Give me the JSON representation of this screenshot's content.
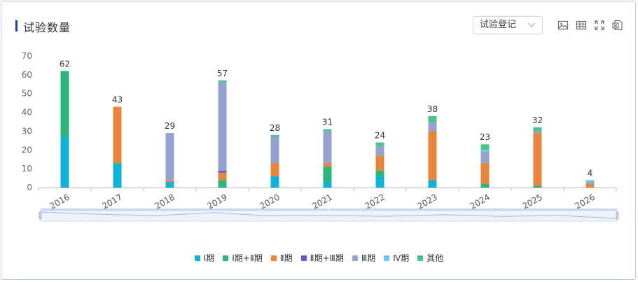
{
  "header": {
    "title": "试验数量",
    "select_value": "试验登记"
  },
  "toolbar": {
    "icons": [
      "image-icon",
      "table-icon",
      "fullscreen-icon",
      "excel-icon"
    ]
  },
  "chart_data": {
    "type": "bar",
    "stacked": true,
    "title": "",
    "xlabel": "",
    "ylabel": "",
    "ylim": [
      0,
      70
    ],
    "yticks": [
      0,
      10,
      20,
      30,
      40,
      50,
      60,
      70
    ],
    "grid": false,
    "legend_position": "bottom",
    "categories": [
      "2016",
      "2017",
      "2018",
      "2019",
      "2020",
      "2021",
      "2022",
      "2023",
      "2024",
      "2025",
      "2026"
    ],
    "totals": [
      62,
      43,
      29,
      57,
      28,
      31,
      24,
      38,
      23,
      32,
      4
    ],
    "series": [
      {
        "name": "Ⅰ期",
        "color": "#0fb3d6",
        "values": [
          27,
          13,
          3,
          0,
          6,
          3,
          6,
          4,
          0,
          0,
          0
        ]
      },
      {
        "name": "Ⅰ期+Ⅱ期",
        "color": "#2db47a",
        "values": [
          35,
          0,
          0,
          4,
          0,
          8,
          3,
          0,
          2,
          1,
          0
        ]
      },
      {
        "name": "Ⅱ期",
        "color": "#e8853a",
        "values": [
          0,
          30,
          1,
          4,
          7,
          2,
          8,
          26,
          11,
          28,
          2
        ]
      },
      {
        "name": "Ⅱ期+Ⅲ期",
        "color": "#6057e6",
        "values": [
          0,
          0,
          0,
          1,
          0,
          0,
          0,
          0,
          0,
          0,
          0
        ]
      },
      {
        "name": "Ⅲ期",
        "color": "#93a3cf",
        "values": [
          0,
          0,
          25,
          47,
          14,
          17,
          5,
          5,
          6,
          1,
          1
        ]
      },
      {
        "name": "Ⅳ期",
        "color": "#6ec9ea",
        "values": [
          0,
          0,
          0,
          0,
          0,
          0,
          0,
          0,
          1,
          0,
          1
        ]
      },
      {
        "name": "其他",
        "color": "#49c48a",
        "values": [
          0,
          0,
          0,
          1,
          1,
          1,
          2,
          3,
          3,
          2,
          0
        ]
      }
    ]
  }
}
